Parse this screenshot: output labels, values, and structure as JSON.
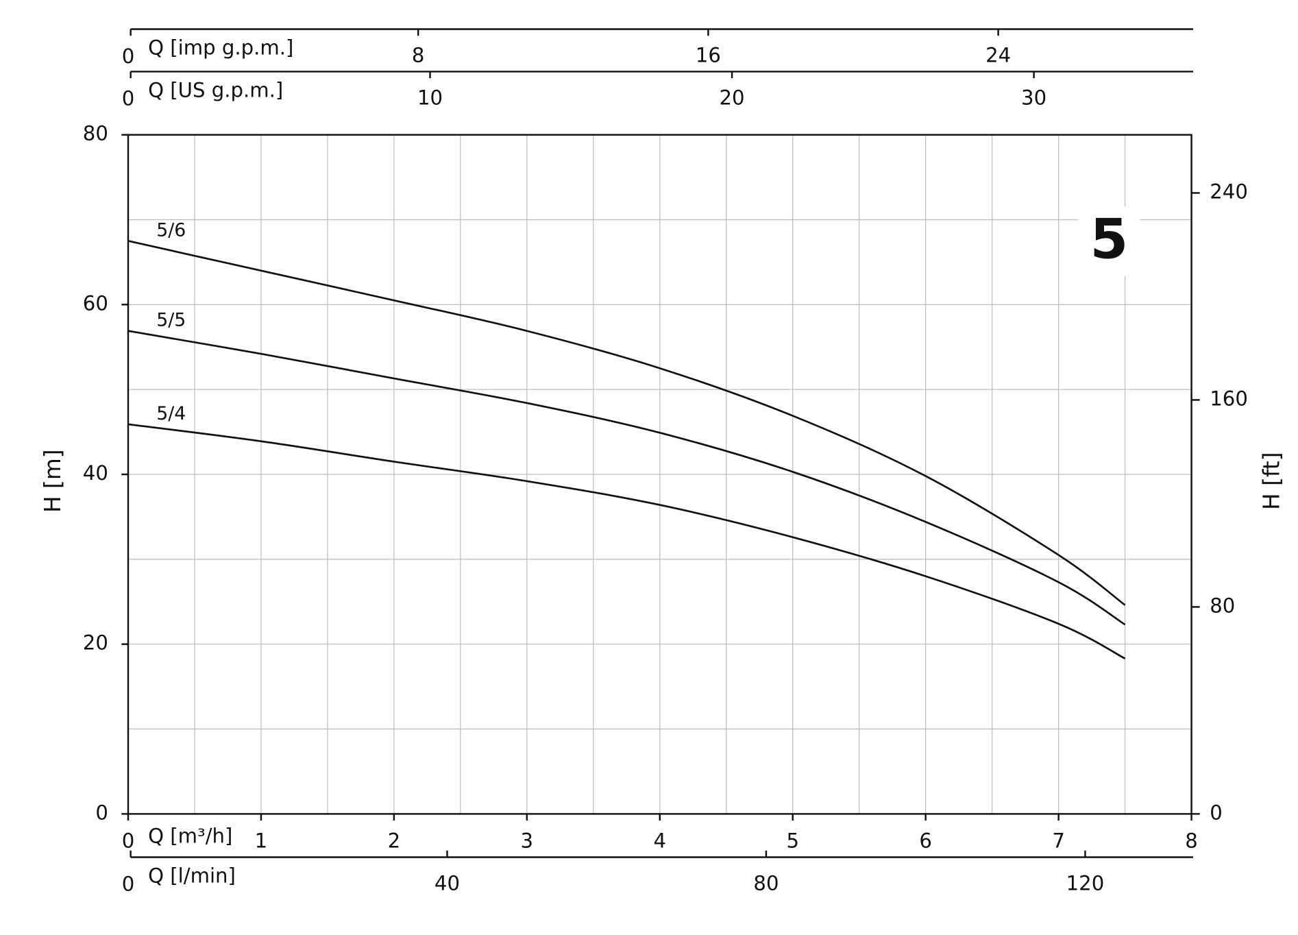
{
  "chart_data": {
    "type": "line",
    "xlabel": "Q [m³/h]",
    "xlim": [
      0,
      8
    ],
    "xticks": [
      0,
      1,
      2,
      3,
      4,
      5,
      6,
      7,
      8
    ],
    "x_minor_ticks": [
      0.5,
      1.5,
      2.5,
      3.5,
      4.5,
      5.5,
      6.5,
      7.5
    ],
    "ylabel": "H [m]",
    "ylim": [
      0,
      80
    ],
    "yticks": [
      0,
      20,
      40,
      60,
      80
    ],
    "y_minor_ticks": [
      10,
      30,
      50,
      70
    ],
    "y2label": "H [ft]",
    "y2lim": [
      0,
      262.47
    ],
    "y2ticks": [
      0,
      80,
      160,
      240
    ],
    "extra_x_axes": [
      {
        "label": "Q [imp g.p.m.]",
        "position": "top",
        "lim": [
          0,
          29.33
        ],
        "ticks": [
          0,
          8,
          16,
          24
        ]
      },
      {
        "label": "Q [US g.p.m.]",
        "position": "top",
        "lim": [
          0,
          35.22
        ],
        "ticks": [
          0,
          10,
          20,
          30
        ]
      },
      {
        "label": "Q [l/min]",
        "position": "bottom",
        "lim": [
          0,
          133.33
        ],
        "ticks": [
          0,
          40,
          80,
          120
        ]
      }
    ],
    "annotation": "5",
    "grid": true,
    "x": [
      0,
      1,
      2,
      3,
      4,
      5,
      6,
      7,
      7.5
    ],
    "series": [
      {
        "name": "5/6",
        "color": "#111111",
        "values": [
          67.5,
          64,
          60.5,
          56.9,
          52.5,
          46.9,
          39.8,
          30.5,
          24.6
        ]
      },
      {
        "name": "5/5",
        "color": "#111111",
        "values": [
          56.9,
          54.2,
          51.3,
          48.4,
          44.9,
          40.3,
          34.4,
          27.3,
          22.3
        ]
      },
      {
        "name": "5/4",
        "color": "#111111",
        "values": [
          45.9,
          43.9,
          41.5,
          39.2,
          36.4,
          32.6,
          28.0,
          22.4,
          18.3
        ]
      }
    ]
  }
}
